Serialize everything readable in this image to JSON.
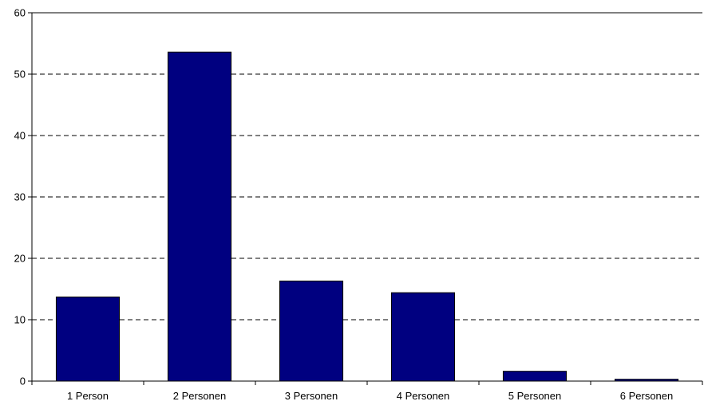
{
  "chart_data": {
    "type": "bar",
    "categories": [
      "1 Person",
      "2 Personen",
      "3 Personen",
      "4 Personen",
      "5 Personen",
      "6 Personen"
    ],
    "values": [
      13.7,
      53.6,
      16.3,
      14.4,
      1.6,
      0.3
    ],
    "title": "",
    "xlabel": "",
    "ylabel": "",
    "ylim": [
      0,
      60
    ],
    "yticks": [
      0,
      10,
      20,
      30,
      40,
      50,
      60
    ],
    "grid": "horizontal dashed",
    "legend": "none",
    "colors": {
      "bar_fill": "#000080",
      "bar_stroke": "#000000",
      "axis": "#000000",
      "grid": "#000000",
      "background": "#ffffff"
    }
  }
}
